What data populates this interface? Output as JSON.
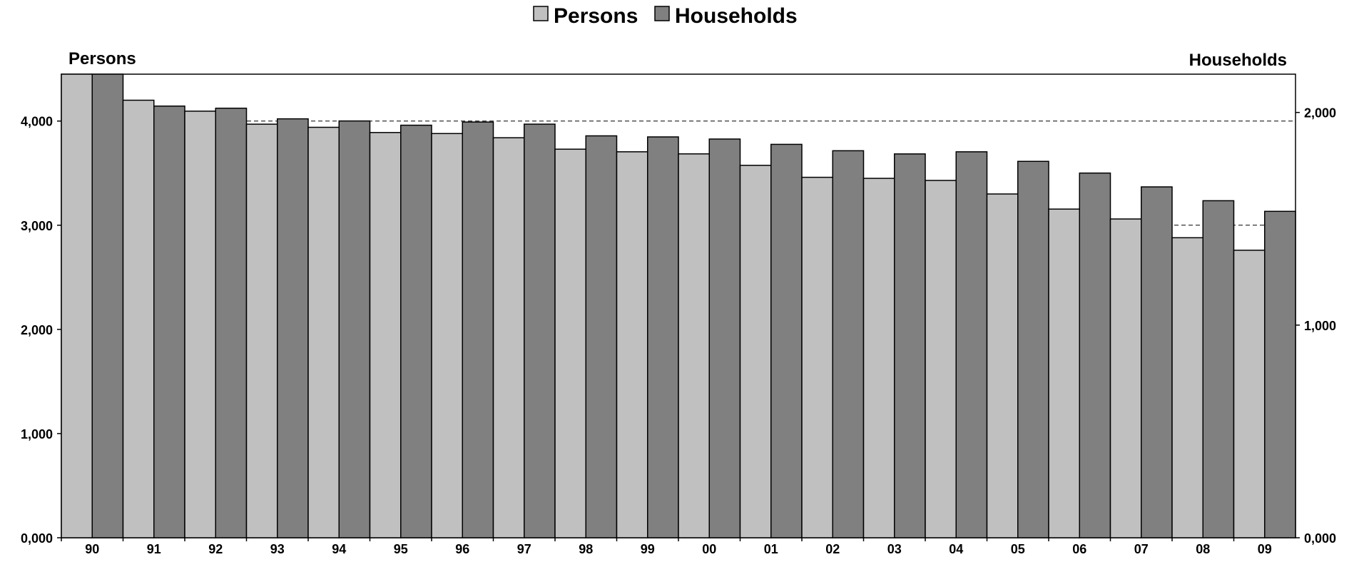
{
  "chart_data": {
    "type": "bar",
    "title": "",
    "categories": [
      "90",
      "91",
      "92",
      "93",
      "94",
      "95",
      "96",
      "97",
      "98",
      "99",
      "00",
      "01",
      "02",
      "03",
      "04",
      "05",
      "06",
      "07",
      "08",
      "09"
    ],
    "series": [
      {
        "name": "Persons",
        "axis": "left",
        "color": "#c0c0c0",
        "values": [
          4450,
          4200,
          4095,
          3970,
          3940,
          3890,
          3880,
          3840,
          3730,
          3705,
          3685,
          3575,
          3460,
          3450,
          3430,
          3300,
          3155,
          3060,
          2880,
          2760
        ]
      },
      {
        "name": "Households",
        "axis": "right",
        "color": "#808080",
        "values": [
          2180,
          2030,
          2020,
          1970,
          1960,
          1940,
          1955,
          1945,
          1890,
          1885,
          1875,
          1850,
          1820,
          1805,
          1815,
          1770,
          1715,
          1650,
          1585,
          1535
        ]
      }
    ],
    "y_left": {
      "label": "Persons",
      "ylim": [
        0,
        4450
      ],
      "ticks": [
        0,
        1000,
        2000,
        3000,
        4000
      ],
      "tick_labels": [
        "0,000",
        "1,000",
        "2,000",
        "3,000",
        "4,000"
      ]
    },
    "y_right": {
      "label": "Households",
      "ylim": [
        0,
        2180
      ],
      "ticks": [
        0,
        1000,
        2000
      ],
      "tick_labels": [
        "0,000",
        "1,000",
        "2,000"
      ]
    },
    "gridlines": {
      "left_values": [
        4000,
        3000
      ],
      "style": "dashed"
    },
    "legend": {
      "position": "top-center"
    },
    "colors": {
      "persons": "#c0c0c0",
      "households": "#808080",
      "border": "#000000"
    }
  }
}
